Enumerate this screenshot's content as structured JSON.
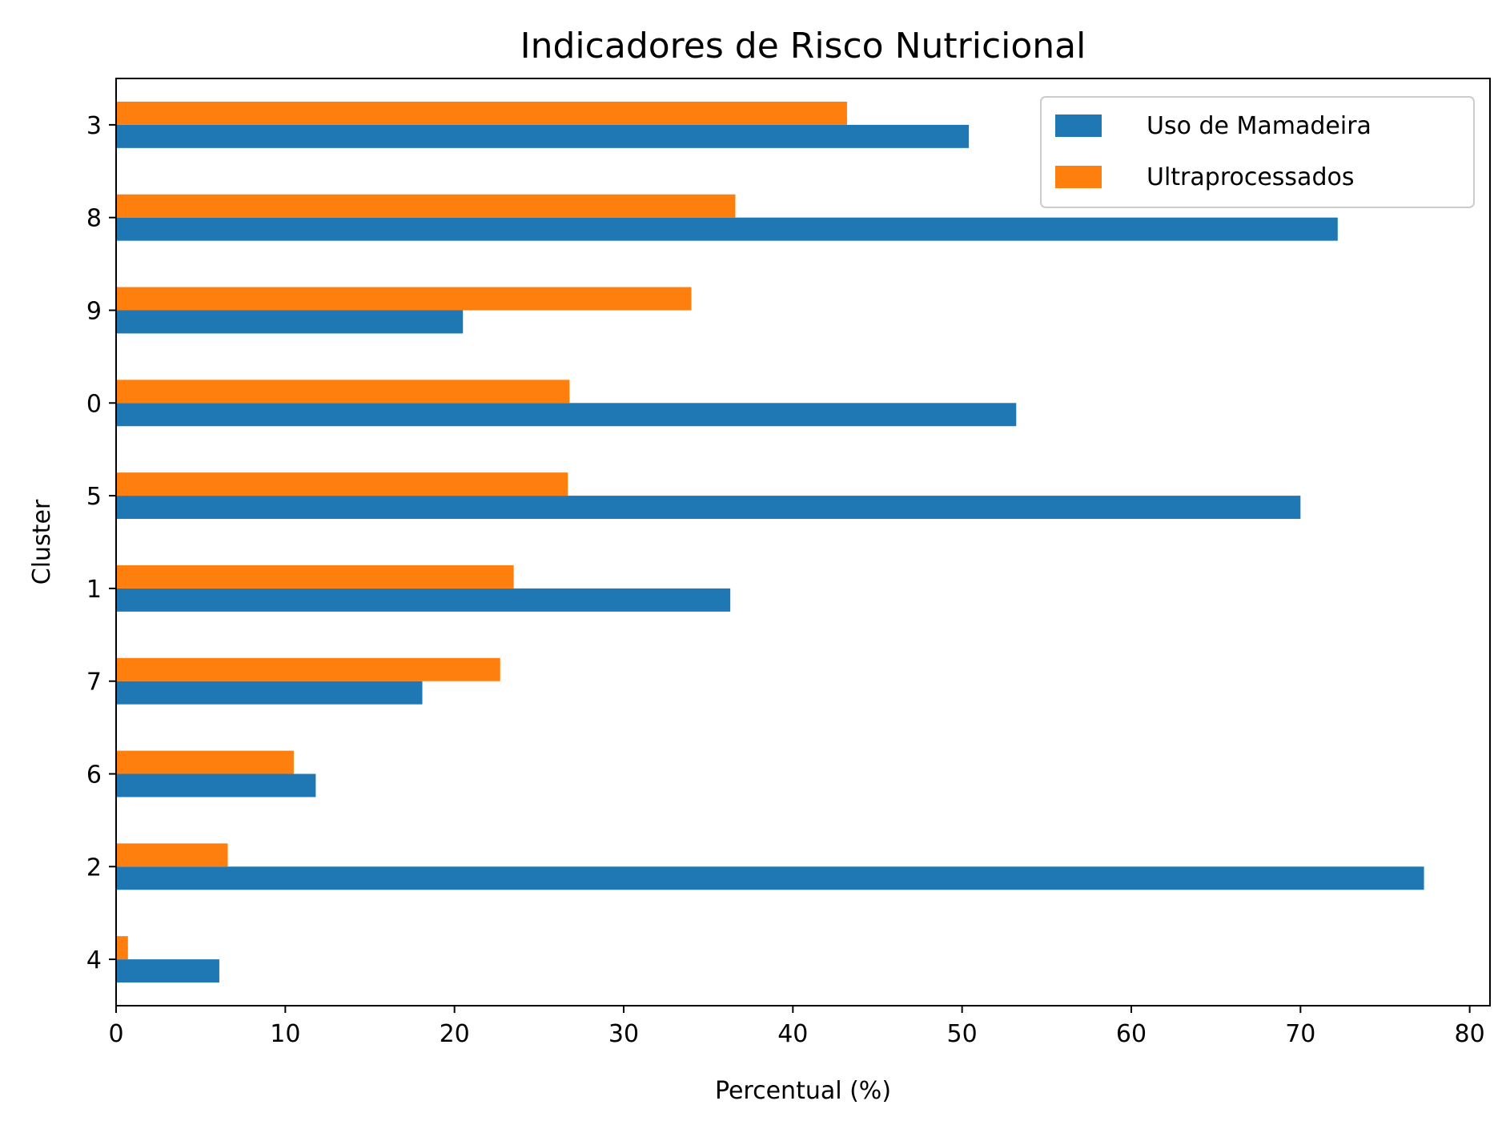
{
  "chart_data": {
    "type": "bar",
    "orientation": "horizontal",
    "title": "Indicadores de Risco Nutricional",
    "xlabel": "Percentual (%)",
    "ylabel": "Cluster",
    "categories": [
      "3",
      "8",
      "9",
      "0",
      "5",
      "1",
      "7",
      "6",
      "2",
      "4"
    ],
    "series": [
      {
        "name": "Uso de Mamadeira",
        "color": "#1f77b4",
        "values": [
          50.4,
          72.2,
          20.5,
          53.2,
          70.0,
          36.3,
          18.1,
          11.8,
          77.3,
          6.1
        ]
      },
      {
        "name": "Ultraprocessados",
        "color": "#ff7f0e",
        "values": [
          43.2,
          36.6,
          34.0,
          26.8,
          26.7,
          23.5,
          22.7,
          10.5,
          6.6,
          0.7
        ]
      }
    ],
    "xlim": [
      0,
      81.2
    ],
    "xticks": [
      0,
      10,
      20,
      30,
      40,
      50,
      60,
      70,
      80
    ],
    "grid": false,
    "legend_position": "top-right"
  }
}
